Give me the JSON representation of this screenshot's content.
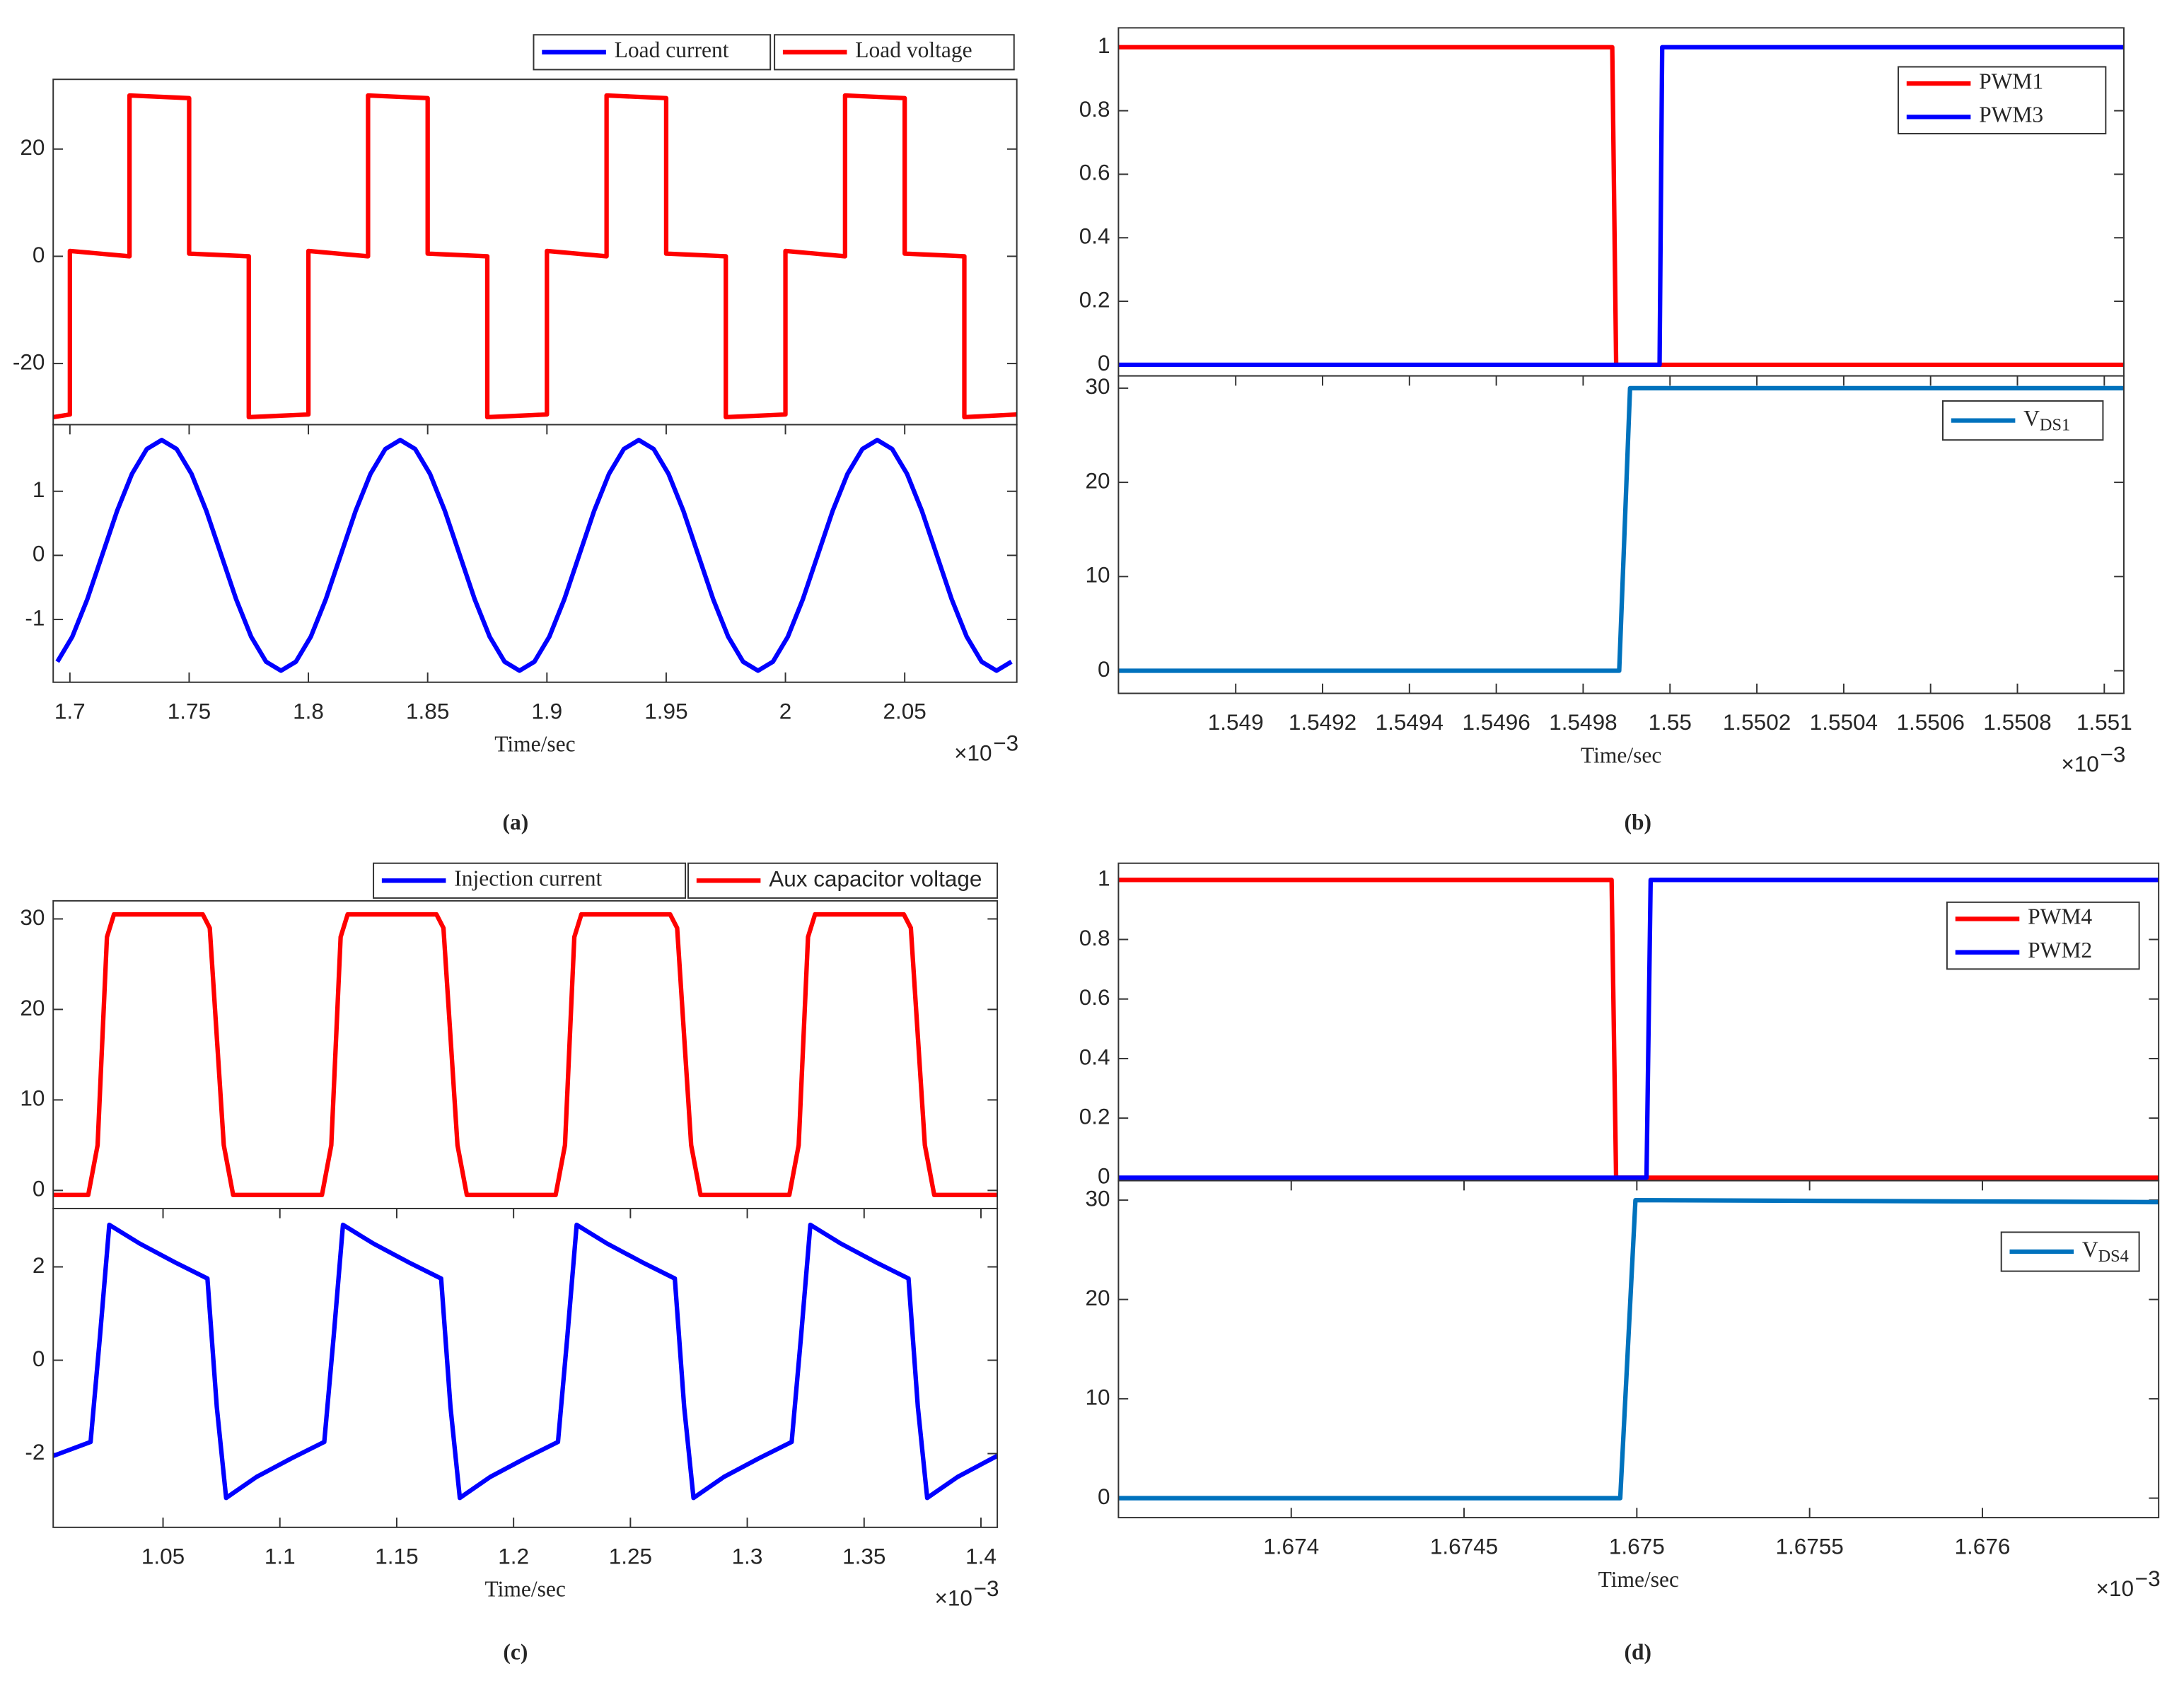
{
  "panel_labels": [
    "(a)",
    "(b)",
    "(c)",
    "(d)"
  ],
  "chart_data": [
    {
      "type": "line",
      "legend": "above",
      "xlim": [
        1.693,
        2.097
      ],
      "ylim": [
        -31.4,
        33
      ],
      "yticks": [
        -20,
        0,
        20
      ],
      "series": [
        {
          "name": "Load voltage",
          "color": "#ff0000",
          "x": [
            1.693,
            1.7,
            1.7,
            1.725,
            1.725,
            1.75,
            1.75,
            1.775,
            1.775,
            1.8,
            1.8,
            1.825,
            1.825,
            1.85,
            1.85,
            1.875,
            1.875,
            1.9,
            1.9,
            1.925,
            1.925,
            1.95,
            1.95,
            1.975,
            1.975,
            2,
            2,
            2.025,
            2.025,
            2.05,
            2.05,
            2.075,
            2.075,
            2.097
          ],
          "values": [
            -30,
            -29.5,
            1,
            0,
            30,
            29.5,
            0.5,
            0,
            -30,
            -29.5,
            1,
            0,
            30,
            29.5,
            0.5,
            0,
            -30,
            -29.5,
            1,
            0,
            30,
            29.5,
            0.5,
            0,
            -30,
            -29.5,
            1,
            0,
            30,
            29.5,
            0.5,
            0,
            -30,
            -29.5
          ]
        }
      ]
    },
    {
      "type": "line",
      "legend": "above",
      "xlim": [
        1.693,
        2.097
      ],
      "ylim": [
        -1.98,
        2.04
      ],
      "yticks": [
        -1,
        0,
        1
      ],
      "xticks": [
        1.7,
        1.75,
        1.8,
        1.85,
        1.9,
        1.95,
        2,
        2.05
      ],
      "xlabel": "Time/sec",
      "x_multiplier": {
        "base": "×10",
        "power": "−3"
      },
      "series": [
        {
          "name": "Load current",
          "color": "#0000ff",
          "x": [
            1.69475,
            1.701,
            1.70725,
            1.7135,
            1.71975,
            1.726,
            1.73225,
            1.7385,
            1.74475,
            1.751,
            1.75725,
            1.7635,
            1.76975,
            1.776,
            1.78225,
            1.7885,
            1.79475,
            1.801,
            1.80725,
            1.8135,
            1.81975,
            1.826,
            1.83225,
            1.8385,
            1.84475,
            1.851,
            1.85725,
            1.8635,
            1.86975,
            1.876,
            1.88225,
            1.8885,
            1.89475,
            1.901,
            1.90725,
            1.9135,
            1.91975,
            1.926,
            1.93225,
            1.9385,
            1.94475,
            1.951,
            1.95725,
            1.9635,
            1.96975,
            1.976,
            1.98225,
            1.9885,
            1.99475,
            2.001,
            2.00725,
            2.0135,
            2.01975,
            2.026,
            2.03225,
            2.0385,
            2.04475,
            2.051,
            2.05725,
            2.0635,
            2.06975,
            2.076,
            2.08225,
            2.0885,
            2.09475
          ],
          "values": [
            -1.66,
            -1.27,
            -0.69,
            0,
            0.69,
            1.27,
            1.66,
            1.8,
            1.66,
            1.27,
            0.69,
            0,
            -0.69,
            -1.27,
            -1.66,
            -1.8,
            -1.66,
            -1.27,
            -0.69,
            0,
            0.69,
            1.27,
            1.66,
            1.8,
            1.66,
            1.27,
            0.69,
            0,
            -0.69,
            -1.27,
            -1.66,
            -1.8,
            -1.66,
            -1.27,
            -0.69,
            0,
            0.69,
            1.27,
            1.66,
            1.8,
            1.66,
            1.27,
            0.69,
            0,
            -0.69,
            -1.27,
            -1.66,
            -1.8,
            -1.66,
            -1.27,
            -0.69,
            0,
            0.69,
            1.27,
            1.66,
            1.8,
            1.66,
            1.27,
            0.69,
            0,
            -0.69,
            -1.27,
            -1.66,
            -1.8,
            -1.66
          ]
        }
      ]
    },
    {
      "type": "line",
      "legend": "upper right",
      "xlim": [
        1.54873,
        1.551045
      ],
      "ylim": [
        -0.035,
        1.061
      ],
      "yticks": [
        0,
        0.2,
        0.4,
        0.6,
        0.8,
        1
      ],
      "series": [
        {
          "name": "PWM1",
          "color": "#ff0000",
          "x": [
            1.54873,
            1.549867,
            1.549876,
            1.551045
          ],
          "values": [
            1,
            1,
            0,
            0
          ]
        },
        {
          "name": "PWM3",
          "color": "#0000ff",
          "x": [
            1.54873,
            1.549976,
            1.549982,
            1.551045
          ],
          "values": [
            0,
            0,
            1,
            1
          ]
        }
      ]
    },
    {
      "type": "line",
      "legend": "upper right",
      "xlim": [
        1.54873,
        1.551045
      ],
      "ylim": [
        -2.4,
        31.3
      ],
      "yticks": [
        0,
        10,
        20,
        30
      ],
      "xticks": [
        1.549,
        1.5492,
        1.5494,
        1.5496,
        1.5498,
        1.55,
        1.5502,
        1.5504,
        1.5506,
        1.5508,
        1.551
      ],
      "xlabel": "Time/sec",
      "x_multiplier": {
        "base": "×10",
        "power": "−3"
      },
      "series": [
        {
          "name": "VDS1",
          "color": "#0072bd",
          "x": [
            1.54873,
            1.549883,
            1.549908,
            1.551045
          ],
          "values": [
            0,
            0,
            30,
            30
          ]
        }
      ]
    },
    {
      "type": "line",
      "legend": "above",
      "xlim": [
        1.003,
        1.407
      ],
      "ylim": [
        -2,
        32
      ],
      "yticks": [
        0,
        10,
        20,
        30
      ],
      "series": [
        {
          "name": "Aux capacitor voltage",
          "color": "#ff0000",
          "x": [
            1.003,
            1.018,
            1.022,
            1.026,
            1.029,
            1.067,
            1.07,
            1.076,
            1.08,
            1.118,
            1.122,
            1.126,
            1.129,
            1.167,
            1.17,
            1.176,
            1.18,
            1.218,
            1.222,
            1.226,
            1.229,
            1.267,
            1.27,
            1.276,
            1.28,
            1.318,
            1.322,
            1.326,
            1.329,
            1.367,
            1.37,
            1.376,
            1.38,
            1.407
          ],
          "values": [
            -0.5,
            -0.5,
            5,
            28,
            30.5,
            30.5,
            29,
            5,
            -0.5,
            -0.5,
            5,
            28,
            30.5,
            30.5,
            29,
            5,
            -0.5,
            -0.5,
            5,
            28,
            30.5,
            30.5,
            29,
            5,
            -0.5,
            -0.5,
            5,
            28,
            30.5,
            30.5,
            29,
            5,
            -0.5,
            -0.5
          ]
        }
      ]
    },
    {
      "type": "line",
      "legend": "above",
      "xlim": [
        1.003,
        1.407
      ],
      "ylim": [
        -3.58,
        3.25
      ],
      "yticks": [
        -2,
        0,
        2
      ],
      "xticks": [
        1.05,
        1.1,
        1.15,
        1.2,
        1.25,
        1.3,
        1.35,
        1.4
      ],
      "xlabel": "Time/sec",
      "x_multiplier": {
        "base": "×10",
        "power": "−3"
      },
      "series": [
        {
          "name": "Injection current",
          "color": "#0000ff",
          "x": [
            1.003,
            1.019,
            1.023,
            1.027,
            1.04,
            1.055,
            1.069,
            1.073,
            1.077,
            1.09,
            1.105,
            1.119,
            1.123,
            1.127,
            1.14,
            1.155,
            1.169,
            1.173,
            1.177,
            1.19,
            1.205,
            1.219,
            1.223,
            1.227,
            1.24,
            1.255,
            1.269,
            1.273,
            1.277,
            1.29,
            1.305,
            1.319,
            1.323,
            1.327,
            1.34,
            1.355,
            1.369,
            1.373,
            1.377,
            1.39,
            1.405,
            1.407
          ],
          "values": [
            -2.05,
            -1.75,
            0.5,
            2.9,
            2.5,
            2.1,
            1.75,
            -1,
            -2.95,
            -2.5,
            -2.1,
            -1.75,
            0.5,
            2.9,
            2.5,
            2.1,
            1.75,
            -1,
            -2.95,
            -2.5,
            -2.1,
            -1.75,
            0.5,
            2.9,
            2.5,
            2.1,
            1.75,
            -1,
            -2.95,
            -2.5,
            -2.1,
            -1.75,
            0.5,
            2.9,
            2.5,
            2.1,
            1.75,
            -1,
            -2.95,
            -2.5,
            -2.1,
            -2.05
          ]
        }
      ]
    },
    {
      "type": "line",
      "legend": "upper right",
      "xlim": [
        1.6735,
        1.67651
      ],
      "ylim": [
        -0.01,
        1.056
      ],
      "yticks": [
        0,
        0.2,
        0.4,
        0.6,
        0.8,
        1
      ],
      "series": [
        {
          "name": "PWM4",
          "color": "#ff0000",
          "x": [
            1.6735,
            1.674927,
            1.67494,
            1.67651
          ],
          "values": [
            1,
            1,
            0,
            0
          ]
        },
        {
          "name": "PWM2",
          "color": "#0000ff",
          "x": [
            1.6735,
            1.675028,
            1.67504,
            1.67651
          ],
          "values": [
            0,
            0,
            1,
            1
          ]
        }
      ]
    },
    {
      "type": "line",
      "legend": "upper right",
      "xlim": [
        1.6735,
        1.67651
      ],
      "ylim": [
        -1.96,
        31.96
      ],
      "yticks": [
        0,
        10,
        20,
        30
      ],
      "xticks": [
        1.674,
        1.6745,
        1.675,
        1.6755,
        1.676
      ],
      "xlabel": "Time/sec",
      "x_multiplier": {
        "base": "×10",
        "power": "−3"
      },
      "series": [
        {
          "name": "VDS4",
          "color": "#0072bd",
          "x": [
            1.6735,
            1.674952,
            1.674996,
            1.67651
          ],
          "values": [
            0,
            0,
            30,
            29.8
          ]
        }
      ]
    }
  ]
}
